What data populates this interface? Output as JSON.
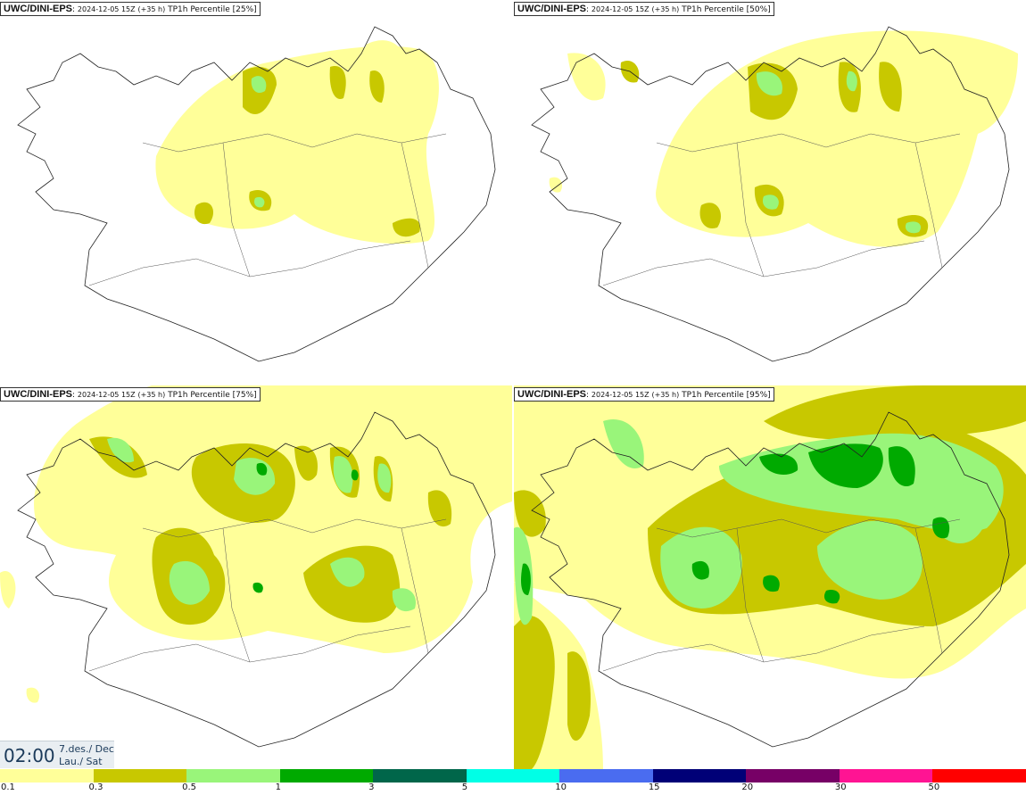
{
  "panels": [
    {
      "model": "UWC/DINI-EPS",
      "run": "2024-12-05 15Z",
      "lead": "(+35 h)",
      "product": "TP1h Percentile",
      "percentile": "[25%]"
    },
    {
      "model": "UWC/DINI-EPS",
      "run": "2024-12-05 15Z",
      "lead": "(+35 h)",
      "product": "TP1h Percentile",
      "percentile": "[50%]"
    },
    {
      "model": "UWC/DINI-EPS",
      "run": "2024-12-05 15Z",
      "lead": "(+35 h)",
      "product": "TP1h Percentile",
      "percentile": "[75%]"
    },
    {
      "model": "UWC/DINI-EPS",
      "run": "2024-12-05 15Z",
      "lead": "(+35 h)",
      "product": "TP1h Percentile",
      "percentile": "[95%]"
    }
  ],
  "valid_time": {
    "time": "02:00",
    "date_line1": "7.des./ Dec",
    "date_line2": "Lau./ Sat"
  },
  "legend": {
    "thresholds": [
      "0.1",
      "0.3",
      "0.5",
      "1",
      "3",
      "5",
      "10",
      "15",
      "20",
      "30",
      "50"
    ],
    "colors": [
      "#ffff99",
      "#c8c800",
      "#99f57a",
      "#00aa00",
      "#00664a",
      "#00ffe6",
      "#4a6cf0",
      "#000077",
      "#770066",
      "#ff1493",
      "#ff0000"
    ]
  }
}
